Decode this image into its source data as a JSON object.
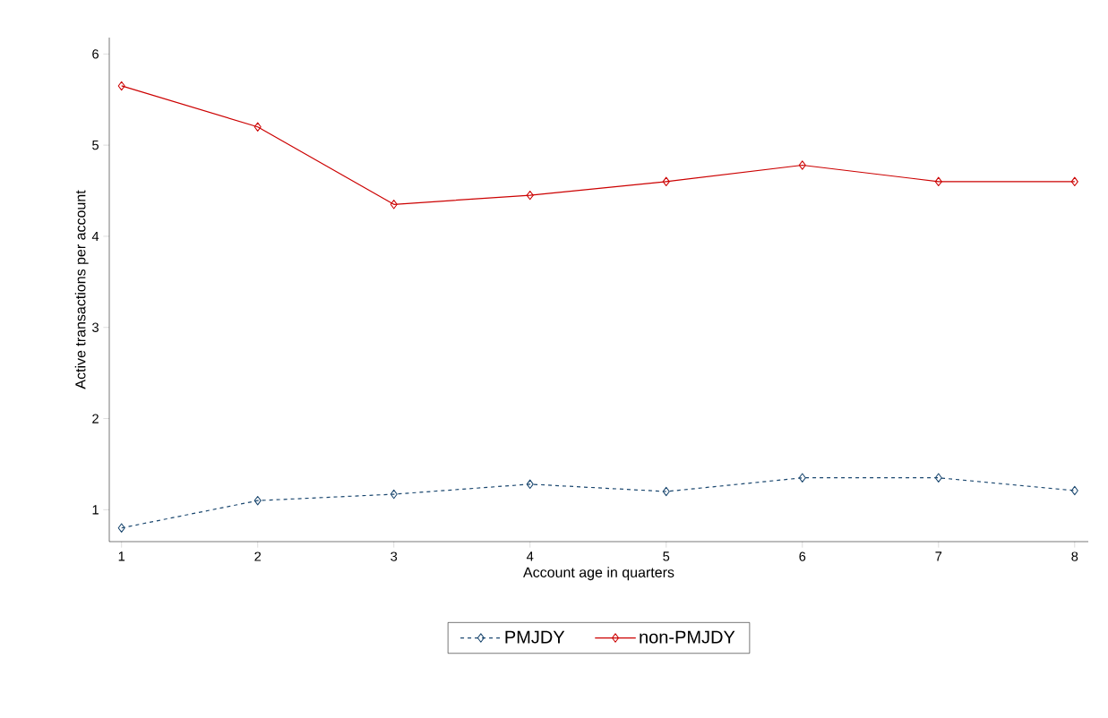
{
  "chart_data": {
    "type": "line",
    "xlabel": "Account age in quarters",
    "ylabel": "Active transactions per account",
    "x": [
      1,
      2,
      3,
      4,
      5,
      6,
      7,
      8
    ],
    "series": [
      {
        "name": "PMJDY",
        "color": "#1a476f",
        "line_style": "dashed",
        "values": [
          0.8,
          1.1,
          1.17,
          1.28,
          1.2,
          1.35,
          1.35,
          1.21
        ]
      },
      {
        "name": "non-PMJDY",
        "color": "#cc0000",
        "line_style": "solid",
        "values": [
          5.65,
          5.2,
          4.35,
          4.45,
          4.6,
          4.78,
          4.6,
          4.6
        ]
      }
    ],
    "marker": "diamond",
    "xlim": [
      0.91,
      8.1
    ],
    "ylim": [
      0.65,
      6.18
    ],
    "xticks": [
      1,
      2,
      3,
      4,
      5,
      6,
      7,
      8
    ],
    "yticks": [
      1,
      2,
      3,
      4,
      5,
      6
    ],
    "grid": false,
    "legend": "bottom"
  }
}
